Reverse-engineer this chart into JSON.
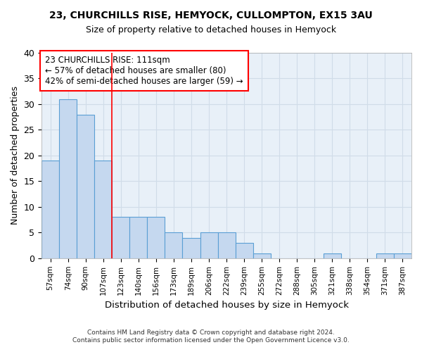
{
  "title1": "23, CHURCHILLS RISE, HEMYOCK, CULLOMPTON, EX15 3AU",
  "title2": "Size of property relative to detached houses in Hemyock",
  "xlabel": "Distribution of detached houses by size in Hemyock",
  "ylabel": "Number of detached properties",
  "categories": [
    "57sqm",
    "74sqm",
    "90sqm",
    "107sqm",
    "123sqm",
    "140sqm",
    "156sqm",
    "173sqm",
    "189sqm",
    "206sqm",
    "222sqm",
    "239sqm",
    "255sqm",
    "272sqm",
    "288sqm",
    "305sqm",
    "321sqm",
    "338sqm",
    "354sqm",
    "371sqm",
    "387sqm"
  ],
  "values": [
    19,
    31,
    28,
    19,
    8,
    8,
    8,
    5,
    4,
    5,
    5,
    3,
    1,
    0,
    0,
    0,
    1,
    0,
    0,
    1,
    1
  ],
  "bar_color": "#c5d8ef",
  "bar_edge_color": "#5a9fd4",
  "grid_color": "#d0dce8",
  "background_color": "#e8f0f8",
  "red_line_x": 3.5,
  "annotation_lines": [
    "23 CHURCHILLS RISE: 111sqm",
    "← 57% of detached houses are smaller (80)",
    "42% of semi-detached houses are larger (59) →"
  ],
  "footer1": "Contains HM Land Registry data © Crown copyright and database right 2024.",
  "footer2": "Contains public sector information licensed under the Open Government Licence v3.0.",
  "ylim": [
    0,
    40
  ],
  "yticks": [
    0,
    5,
    10,
    15,
    20,
    25,
    30,
    35,
    40
  ]
}
